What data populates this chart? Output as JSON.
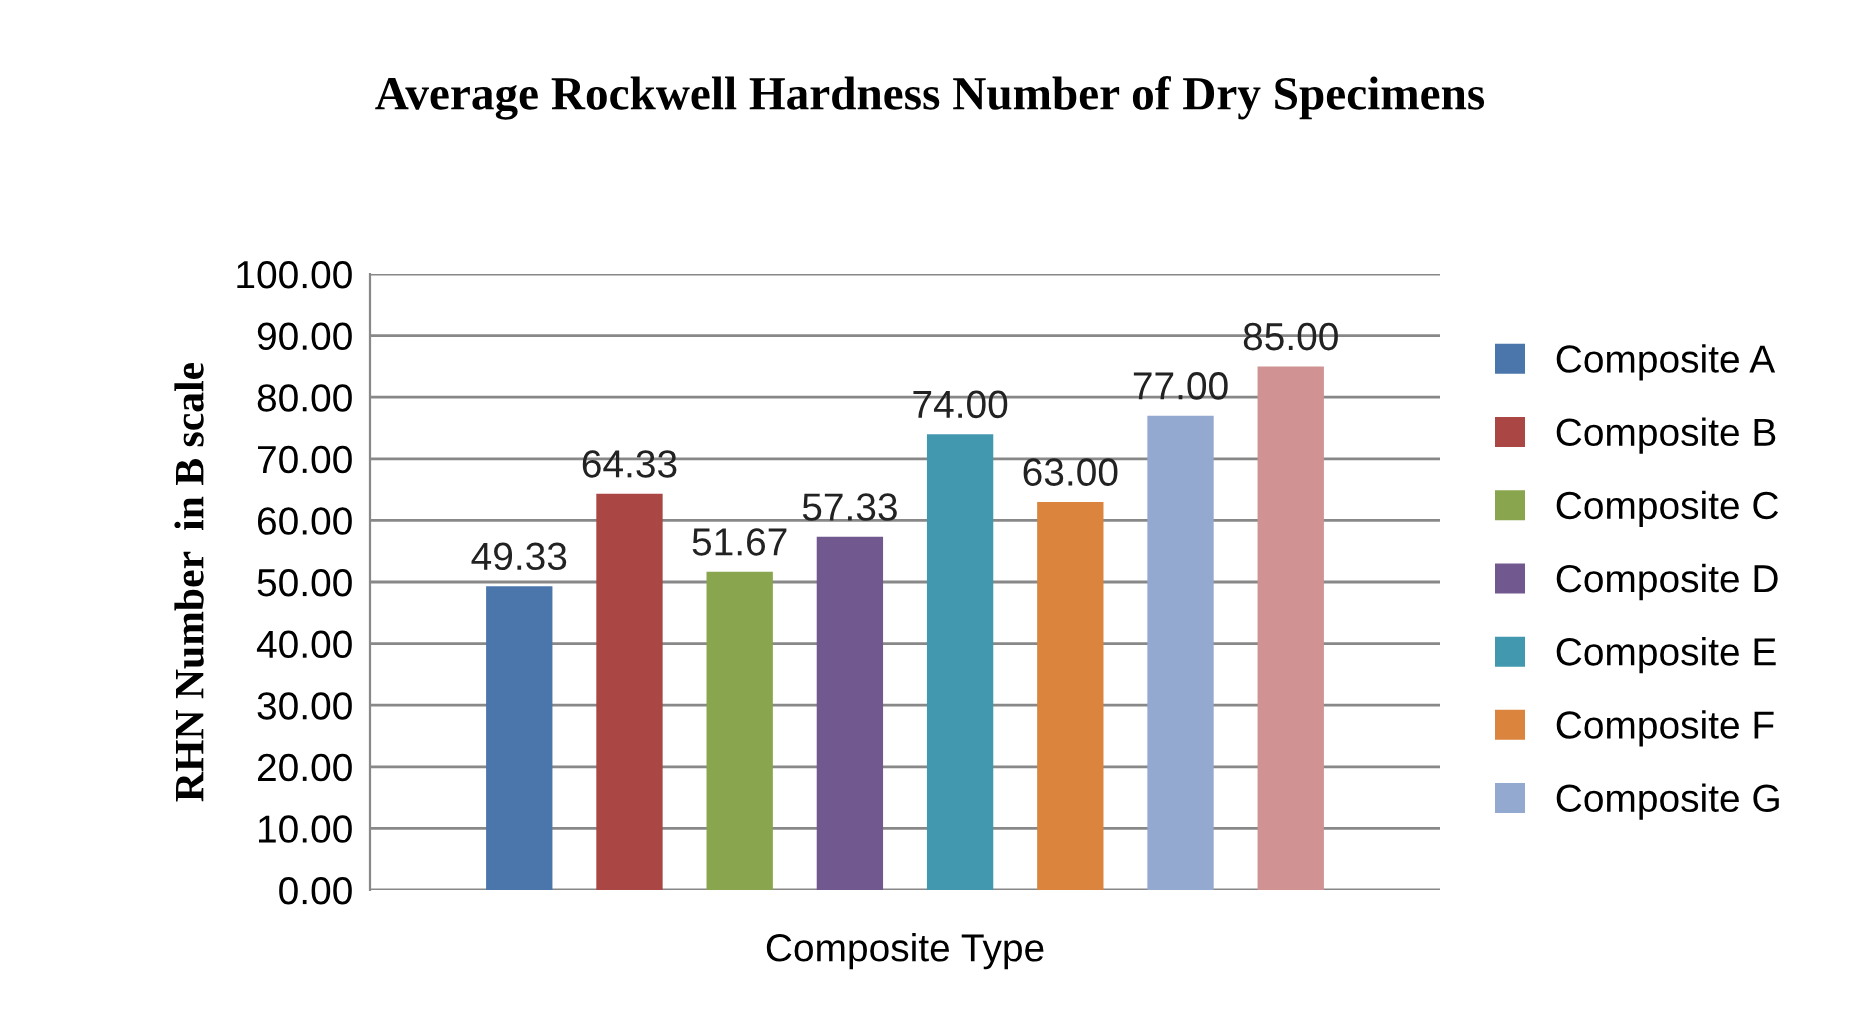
{
  "chart_data": {
    "type": "bar",
    "title": "Average Rockwell Hardness Number of Dry Specimens",
    "xlabel": "Composite Type",
    "ylabel": "RHN Number  in B scale",
    "categories": [
      null
    ],
    "series": [
      {
        "name": "Composite A",
        "color": "#4a76ab",
        "values": [
          49.33
        ],
        "value_labels": [
          "49.33"
        ]
      },
      {
        "name": "Composite B",
        "color": "#aa4644",
        "values": [
          64.33
        ],
        "value_labels": [
          "64.33"
        ]
      },
      {
        "name": "Composite C",
        "color": "#89a54e",
        "values": [
          51.67
        ],
        "value_labels": [
          "51.67"
        ]
      },
      {
        "name": "Composite D",
        "color": "#71588f",
        "values": [
          57.33
        ],
        "value_labels": [
          "57.33"
        ]
      },
      {
        "name": "Composite E",
        "color": "#4198af",
        "values": [
          74.0
        ],
        "value_labels": [
          "74.00"
        ]
      },
      {
        "name": "Composite F",
        "color": "#db843d",
        "values": [
          63.0
        ],
        "value_labels": [
          "63.00"
        ]
      },
      {
        "name": "Composite G",
        "color": "#93a9cf",
        "values": [
          77.0
        ],
        "value_labels": [
          "77.00"
        ]
      },
      {
        "color": "#d09293",
        "values": [
          85.0
        ],
        "value_labels": [
          "85.00"
        ]
      }
    ],
    "ylim": [
      0,
      100
    ],
    "yticks": [
      {
        "value": 0,
        "label": "0.00"
      },
      {
        "value": 10,
        "label": "10.00"
      },
      {
        "value": 20,
        "label": "20.00"
      },
      {
        "value": 30,
        "label": "30.00"
      },
      {
        "value": 40,
        "label": "40.00"
      },
      {
        "value": 50,
        "label": "50.00"
      },
      {
        "value": 60,
        "label": "60.00"
      },
      {
        "value": 70,
        "label": "70.00"
      },
      {
        "value": 80,
        "label": "80.00"
      },
      {
        "value": 90,
        "label": "90.00"
      },
      {
        "value": 100,
        "label": "100.00"
      }
    ],
    "grid": "y",
    "legend": "right"
  }
}
